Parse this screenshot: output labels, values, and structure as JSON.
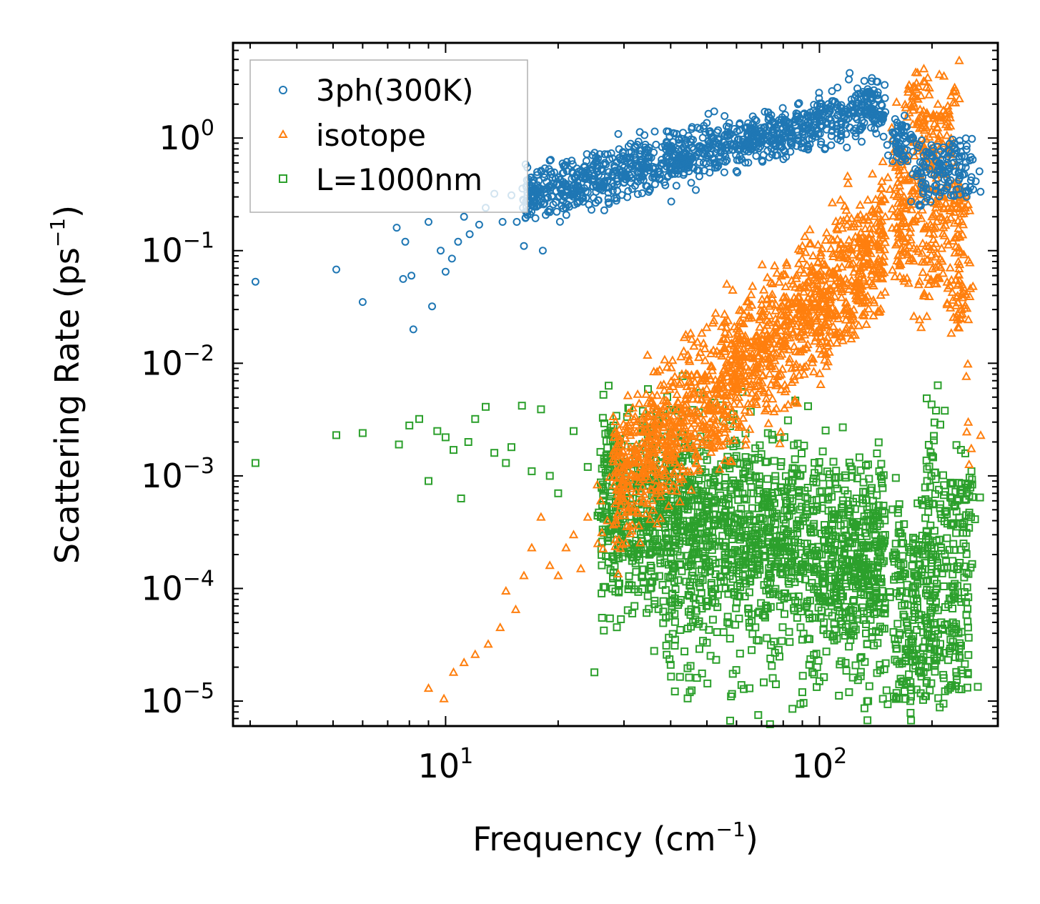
{
  "chart_data": {
    "type": "scatter",
    "xscale": "log",
    "yscale": "log",
    "xlim": [
      2.7,
      300
    ],
    "ylim": [
      6e-06,
      7
    ],
    "xlabel": "Frequency (cm",
    "xlabel_unit_exp": "−1",
    "xlabel_close": ")",
    "ylabel": "Scattering Rate (ps",
    "ylabel_unit_exp": "−1",
    "ylabel_close": ")",
    "x_ticks": [
      {
        "value": 10,
        "base": "10",
        "exp": "1"
      },
      {
        "value": 100,
        "base": "10",
        "exp": "2"
      }
    ],
    "y_ticks": [
      {
        "value": 1,
        "base": "10",
        "exp": "0"
      },
      {
        "value": 0.1,
        "base": "10",
        "exp": "−1"
      },
      {
        "value": 0.01,
        "base": "10",
        "exp": "−2"
      },
      {
        "value": 0.001,
        "base": "10",
        "exp": "−3"
      },
      {
        "value": 0.0001,
        "base": "10",
        "exp": "−4"
      },
      {
        "value": 1e-05,
        "base": "10",
        "exp": "−5"
      }
    ],
    "legend_position": "top-left",
    "series": [
      {
        "name": "3ph(300K)",
        "marker": "circle",
        "color": "#1f77b4",
        "points": [
          [
            3.1,
            0.053
          ],
          [
            5.1,
            0.068
          ],
          [
            6.0,
            0.035
          ],
          [
            7.4,
            0.16
          ],
          [
            7.7,
            0.056
          ],
          [
            7.8,
            0.12
          ],
          [
            8.1,
            0.06
          ],
          [
            8.2,
            0.02
          ],
          [
            9.0,
            0.18
          ],
          [
            9.2,
            0.032
          ],
          [
            9.7,
            0.1
          ],
          [
            10.0,
            0.065
          ],
          [
            10.4,
            0.085
          ],
          [
            10.8,
            0.12
          ],
          [
            11.2,
            0.2
          ],
          [
            11.6,
            0.14
          ],
          [
            12.3,
            0.17
          ],
          [
            12.8,
            0.24
          ],
          [
            13.5,
            0.32
          ],
          [
            14.2,
            0.18
          ],
          [
            15.0,
            0.31
          ],
          [
            15.5,
            0.18
          ],
          [
            16.2,
            0.11
          ],
          [
            16.8,
            0.21
          ],
          [
            17.3,
            0.33
          ],
          [
            18.2,
            0.1
          ],
          [
            19.0,
            0.22
          ],
          [
            20.0,
            0.3
          ],
          [
            21.0,
            0.26
          ],
          [
            22.5,
            0.31
          ],
          [
            24.0,
            0.33
          ],
          [
            26.0,
            0.35
          ],
          [
            28.0,
            0.34
          ],
          [
            30.0,
            0.4
          ],
          [
            33.0,
            0.45
          ],
          [
            36.0,
            0.48
          ],
          [
            40.0,
            0.55
          ],
          [
            45.0,
            0.62
          ],
          [
            50.0,
            0.7
          ],
          [
            56.0,
            0.78
          ],
          [
            63.0,
            0.88
          ],
          [
            70.0,
            0.98
          ],
          [
            80.0,
            1.1
          ],
          [
            90.0,
            1.25
          ],
          [
            100.0,
            1.4
          ],
          [
            112.0,
            1.6
          ],
          [
            125.0,
            1.85
          ],
          [
            135.0,
            2.1
          ],
          [
            143.0,
            2.4
          ],
          [
            150.0,
            1.7
          ],
          [
            158.0,
            1.1
          ],
          [
            165.0,
            1.3
          ],
          [
            190.0,
            0.7
          ],
          [
            210.0,
            0.6
          ],
          [
            230.0,
            0.9
          ],
          [
            255.0,
            0.45
          ]
        ],
        "band": {
          "x_range": [
            16,
            150
          ],
          "y_at_start": 0.3,
          "y_at_end": 2.0,
          "log_spread": 0.12
        }
      },
      {
        "name": "isotope",
        "marker": "triangle",
        "color": "#ff7f0e",
        "points": [
          [
            9.0,
            1.3e-05
          ],
          [
            9.9,
            1.05e-05
          ],
          [
            10.5,
            1.8e-05
          ],
          [
            11.2,
            2.2e-05
          ],
          [
            12.0,
            2.6e-05
          ],
          [
            13.0,
            3.2e-05
          ],
          [
            14.0,
            4.5e-05
          ],
          [
            14.5,
            9.5e-05
          ],
          [
            15.4,
            6.5e-05
          ],
          [
            16.2,
            0.00013
          ],
          [
            17.0,
            0.00023
          ],
          [
            18.0,
            0.00043
          ],
          [
            19.0,
            0.00016
          ],
          [
            20.0,
            0.00013
          ],
          [
            21.0,
            0.00023
          ],
          [
            22.0,
            0.0003
          ],
          [
            23.0,
            0.00015
          ],
          [
            24.0,
            0.00043
          ],
          [
            26.0,
            0.0006
          ],
          [
            30.0,
            0.0009
          ],
          [
            35.0,
            0.0013
          ],
          [
            40.0,
            0.0023
          ],
          [
            50.0,
            0.004
          ],
          [
            60.0,
            0.0065
          ],
          [
            70.0,
            0.01
          ],
          [
            80.0,
            0.015
          ],
          [
            90.0,
            0.023
          ],
          [
            100.0,
            0.03
          ],
          [
            115.0,
            0.045
          ],
          [
            125.0,
            0.07
          ],
          [
            135.0,
            0.1
          ],
          [
            150.0,
            0.2
          ],
          [
            160.0,
            0.55
          ],
          [
            175.0,
            2.0
          ],
          [
            190.0,
            3.2
          ],
          [
            200.0,
            0.2
          ],
          [
            215.0,
            1.5
          ],
          [
            230.0,
            2.8
          ],
          [
            240.0,
            0.03
          ],
          [
            250.0,
            0.003
          ]
        ],
        "band": {
          "x_range": [
            28,
            150
          ],
          "y_at_start": 0.0009,
          "y_at_end": 0.12,
          "log_spread": 0.32
        }
      },
      {
        "name": "L=1000nm",
        "marker": "square",
        "color": "#2ca02c",
        "points": [
          [
            3.1,
            0.0013
          ],
          [
            5.1,
            0.0023
          ],
          [
            6.0,
            0.0024
          ],
          [
            7.5,
            0.0019
          ],
          [
            8.0,
            0.0028
          ],
          [
            8.5,
            0.0032
          ],
          [
            9.0,
            0.0009
          ],
          [
            9.5,
            0.0025
          ],
          [
            10.0,
            0.0022
          ],
          [
            10.5,
            0.0017
          ],
          [
            11.0,
            0.00063
          ],
          [
            11.5,
            0.002
          ],
          [
            12.0,
            0.0032
          ],
          [
            12.8,
            0.0041
          ],
          [
            13.5,
            0.0016
          ],
          [
            14.5,
            0.0013
          ],
          [
            15.0,
            0.0018
          ],
          [
            16.0,
            0.0042
          ],
          [
            17.0,
            0.0011
          ],
          [
            18.0,
            0.0039
          ],
          [
            19.0,
            0.001
          ],
          [
            20.0,
            0.0007
          ],
          [
            22.0,
            0.0025
          ],
          [
            24.0,
            0.0012
          ],
          [
            25.0,
            1.8e-05
          ],
          [
            27.0,
            0.0013
          ],
          [
            33.0,
            0.00018
          ],
          [
            40.0,
            2.1e-05
          ],
          [
            45.0,
            1.2e-05
          ],
          [
            50.0,
            3.3e-05
          ],
          [
            58.0,
            1.1e-05
          ],
          [
            65.0,
            1.3e-05
          ],
          [
            75.0,
            1.6e-05
          ],
          [
            90.0,
            1.2e-05
          ],
          [
            100.0,
            1.5e-05
          ],
          [
            120.0,
            1.2e-05
          ],
          [
            135.0,
            1e-05
          ],
          [
            145.0,
            2.1e-05
          ],
          [
            160.0,
            0.00025
          ],
          [
            175.0,
            1e-05
          ],
          [
            190.0,
            3e-05
          ],
          [
            200.0,
            0.0015
          ],
          [
            205.0,
            0.0038
          ],
          [
            215.0,
            1.6e-05
          ],
          [
            240.0,
            0.00085
          ],
          [
            255.0,
            0.0011
          ]
        ],
        "band": {
          "x_range": [
            26,
            150
          ],
          "y_at_start": 0.0005,
          "y_at_end": 0.00018,
          "log_spread": 0.45
        }
      }
    ]
  }
}
